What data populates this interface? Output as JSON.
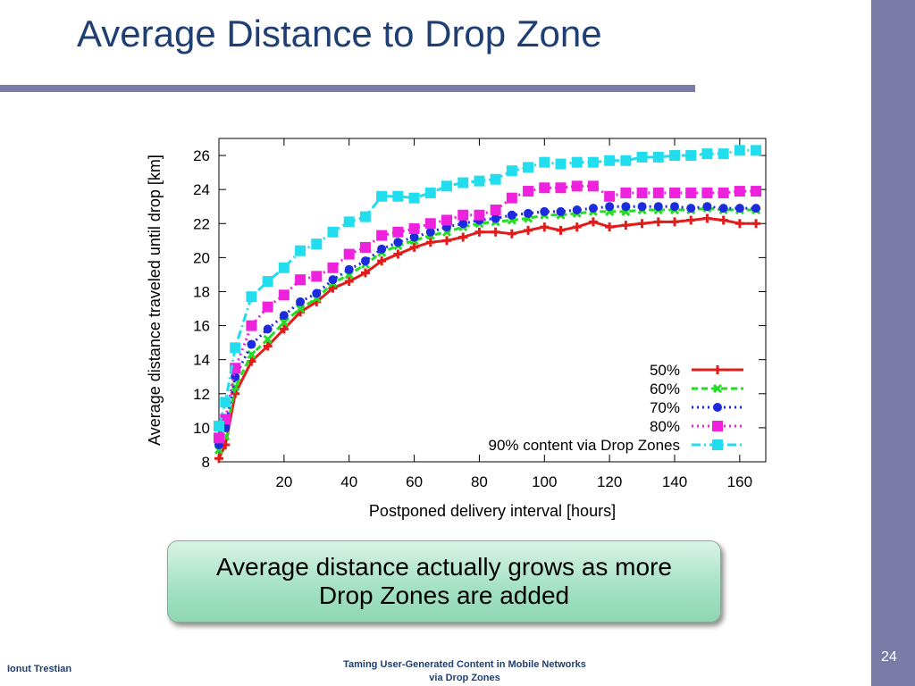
{
  "slide": {
    "title": "Average Distance to Drop Zone",
    "callout": "Average distance actually grows as more Drop Zones are added",
    "author": "Ionut Trestian",
    "footer_title_line1": "Taming User-Generated  Content in Mobile Networks",
    "footer_title_line2": "via Drop Zones",
    "page_number": "24"
  },
  "colors": {
    "title": "#1f3f73",
    "band": "#7b7ba8",
    "series": [
      "#e21b1b",
      "#22dd22",
      "#1c2bdd",
      "#ee22dd",
      "#22dded"
    ]
  },
  "chart_data": {
    "type": "line",
    "xlabel": "Postponed delivery interval [hours]",
    "ylabel": "Average distance traveled until drop [km]",
    "xlim": [
      0,
      168
    ],
    "ylim": [
      8,
      27
    ],
    "xticks": [
      20,
      40,
      60,
      80,
      100,
      120,
      140,
      160
    ],
    "yticks": [
      8,
      10,
      12,
      14,
      16,
      18,
      20,
      22,
      24,
      26
    ],
    "grid": false,
    "legend_position": "bottom-right",
    "x": [
      0,
      2,
      5,
      10,
      15,
      20,
      25,
      30,
      35,
      40,
      45,
      50,
      55,
      60,
      65,
      70,
      75,
      80,
      85,
      90,
      95,
      100,
      105,
      110,
      115,
      120,
      125,
      130,
      135,
      140,
      145,
      150,
      155,
      160,
      165
    ],
    "series": [
      {
        "name": "50%",
        "style": "solid",
        "marker": "plus",
        "values": [
          8.2,
          9.0,
          12.0,
          13.9,
          14.8,
          15.8,
          16.8,
          17.4,
          18.2,
          18.6,
          19.1,
          19.8,
          20.2,
          20.6,
          20.9,
          21.0,
          21.2,
          21.5,
          21.5,
          21.4,
          21.6,
          21.8,
          21.6,
          21.8,
          22.1,
          21.8,
          21.9,
          22.0,
          22.1,
          22.1,
          22.2,
          22.3,
          22.2,
          22.0,
          22.0
        ]
      },
      {
        "name": "60%",
        "style": "dashed",
        "marker": "x",
        "values": [
          8.7,
          9.5,
          12.4,
          14.3,
          15.2,
          16.2,
          17.0,
          17.6,
          18.5,
          19.0,
          19.6,
          20.3,
          20.7,
          21.0,
          21.3,
          21.5,
          21.8,
          22.0,
          22.1,
          22.2,
          22.3,
          22.5,
          22.5,
          22.6,
          22.7,
          22.7,
          22.7,
          22.8,
          22.8,
          22.8,
          22.8,
          22.9,
          22.8,
          22.8,
          22.8
        ]
      },
      {
        "name": "70%",
        "style": "dotted",
        "marker": "circle",
        "values": [
          9.0,
          10.0,
          13.0,
          14.9,
          15.8,
          16.6,
          17.4,
          17.9,
          18.7,
          19.3,
          19.8,
          20.5,
          20.9,
          21.2,
          21.5,
          21.8,
          22.0,
          22.2,
          22.3,
          22.5,
          22.6,
          22.7,
          22.7,
          22.8,
          22.9,
          23.0,
          23.0,
          23.0,
          23.0,
          23.0,
          22.9,
          23.0,
          22.9,
          22.9,
          22.9
        ]
      },
      {
        "name": "80%",
        "style": "dotted",
        "marker": "square",
        "values": [
          9.4,
          10.5,
          13.5,
          16.0,
          17.1,
          17.8,
          18.7,
          18.9,
          19.4,
          20.2,
          20.6,
          21.3,
          21.5,
          21.7,
          22.0,
          22.2,
          22.5,
          22.5,
          22.8,
          23.5,
          23.9,
          24.1,
          24.1,
          24.2,
          24.2,
          23.6,
          23.8,
          23.8,
          23.8,
          23.8,
          23.8,
          23.8,
          23.8,
          23.9,
          23.9
        ]
      },
      {
        "name": "90% content via Drop Zones",
        "style": "dashdot",
        "marker": "square",
        "values": [
          10.1,
          11.5,
          14.7,
          17.7,
          18.6,
          19.4,
          20.4,
          20.8,
          21.5,
          22.1,
          22.4,
          23.6,
          23.6,
          23.5,
          23.8,
          24.2,
          24.4,
          24.5,
          24.6,
          25.1,
          25.3,
          25.6,
          25.5,
          25.6,
          25.6,
          25.7,
          25.7,
          25.9,
          25.9,
          26.0,
          26.0,
          26.1,
          26.1,
          26.3,
          26.3
        ]
      }
    ]
  }
}
